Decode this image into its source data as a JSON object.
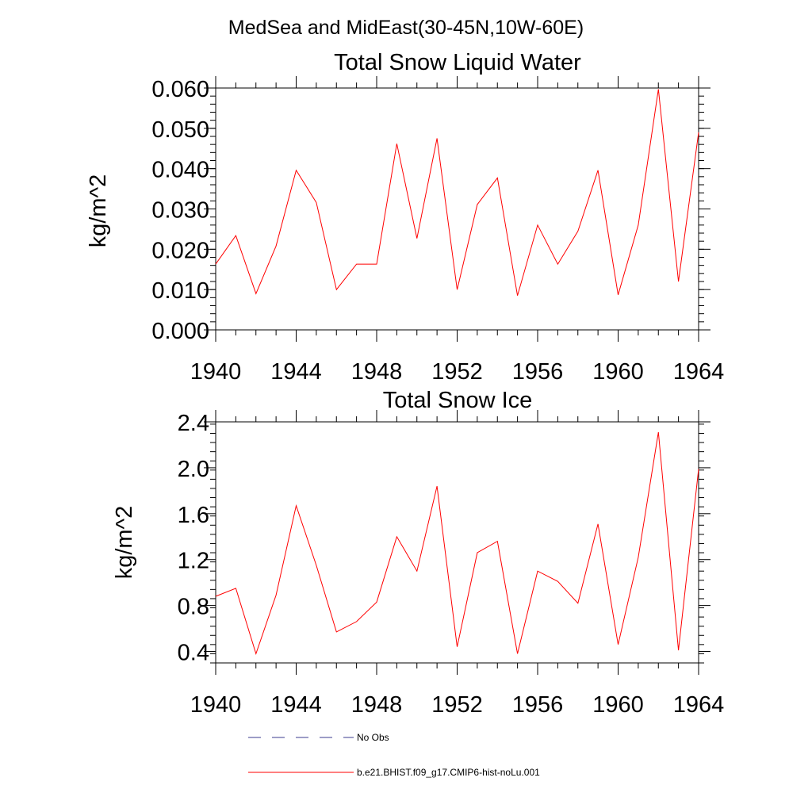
{
  "figure": {
    "title": "MedSea and MidEast(30-45N,10W-60E)"
  },
  "chart_data": [
    {
      "type": "line",
      "title": "Total Snow Liquid Water",
      "xlabel": "",
      "ylabel": "kg/m^2",
      "xlim": [
        1940,
        1964
      ],
      "ylim": [
        0.0,
        0.06
      ],
      "x_ticks": [
        1940,
        1944,
        1948,
        1952,
        1956,
        1960,
        1964
      ],
      "x_tick_labels": [
        "1940",
        "1944",
        "1948",
        "1952",
        "1956",
        "1960",
        "1964"
      ],
      "y_ticks": [
        0.0,
        0.01,
        0.02,
        0.03,
        0.04,
        0.05,
        0.06
      ],
      "y_tick_labels": [
        "0.000",
        "0.010",
        "0.020",
        "0.030",
        "0.040",
        "0.050",
        "0.060"
      ],
      "grid": false,
      "x": [
        1940,
        1941,
        1942,
        1943,
        1944,
        1945,
        1946,
        1947,
        1948,
        1949,
        1950,
        1951,
        1952,
        1953,
        1954,
        1955,
        1956,
        1957,
        1958,
        1959,
        1960,
        1961,
        1962,
        1963,
        1964
      ],
      "series": [
        {
          "name": "b.e21.BHIST.f09_g17.CMIP6-hist-noLu.001",
          "color": "#ff0000",
          "values": [
            0.0163,
            0.0234,
            0.009,
            0.0208,
            0.0396,
            0.0316,
            0.01,
            0.0163,
            0.0163,
            0.0462,
            0.0227,
            0.0475,
            0.01,
            0.0311,
            0.0377,
            0.0085,
            0.026,
            0.0163,
            0.0245,
            0.0396,
            0.0087,
            0.026,
            0.0597,
            0.012,
            0.049
          ]
        }
      ]
    },
    {
      "type": "line",
      "title": "Total Snow Ice",
      "xlabel": "",
      "ylabel": "kg/m^2",
      "xlim": [
        1940,
        1964
      ],
      "ylim": [
        0.3,
        2.4
      ],
      "x_ticks": [
        1940,
        1944,
        1948,
        1952,
        1956,
        1960,
        1964
      ],
      "x_tick_labels": [
        "1940",
        "1944",
        "1948",
        "1952",
        "1956",
        "1960",
        "1964"
      ],
      "y_ticks": [
        0.4,
        0.8,
        1.2,
        1.6,
        2.0,
        2.4
      ],
      "y_tick_labels": [
        "0.4",
        "0.8",
        "1.2",
        "1.6",
        "2.0",
        "2.4"
      ],
      "grid": false,
      "x": [
        1940,
        1941,
        1942,
        1943,
        1944,
        1945,
        1946,
        1947,
        1948,
        1949,
        1950,
        1951,
        1952,
        1953,
        1954,
        1955,
        1956,
        1957,
        1958,
        1959,
        1960,
        1961,
        1962,
        1963,
        1964
      ],
      "series": [
        {
          "name": "b.e21.BHIST.f09_g17.CMIP6-hist-noLu.001",
          "color": "#ff0000",
          "values": [
            0.88,
            0.95,
            0.38,
            0.89,
            1.67,
            1.15,
            0.57,
            0.66,
            0.83,
            1.4,
            1.1,
            1.84,
            0.44,
            1.26,
            1.36,
            0.38,
            1.1,
            1.01,
            0.82,
            1.51,
            0.46,
            1.22,
            2.31,
            0.41,
            1.99
          ]
        }
      ]
    }
  ],
  "legend": {
    "placement": "bottom",
    "items": [
      {
        "label": "No Obs",
        "color": "#3b3b8f",
        "style": "dashed"
      },
      {
        "label": "b.e21.BHIST.f09_g17.CMIP6-hist-noLu.001",
        "color": "#ff0000",
        "style": "solid"
      }
    ]
  }
}
